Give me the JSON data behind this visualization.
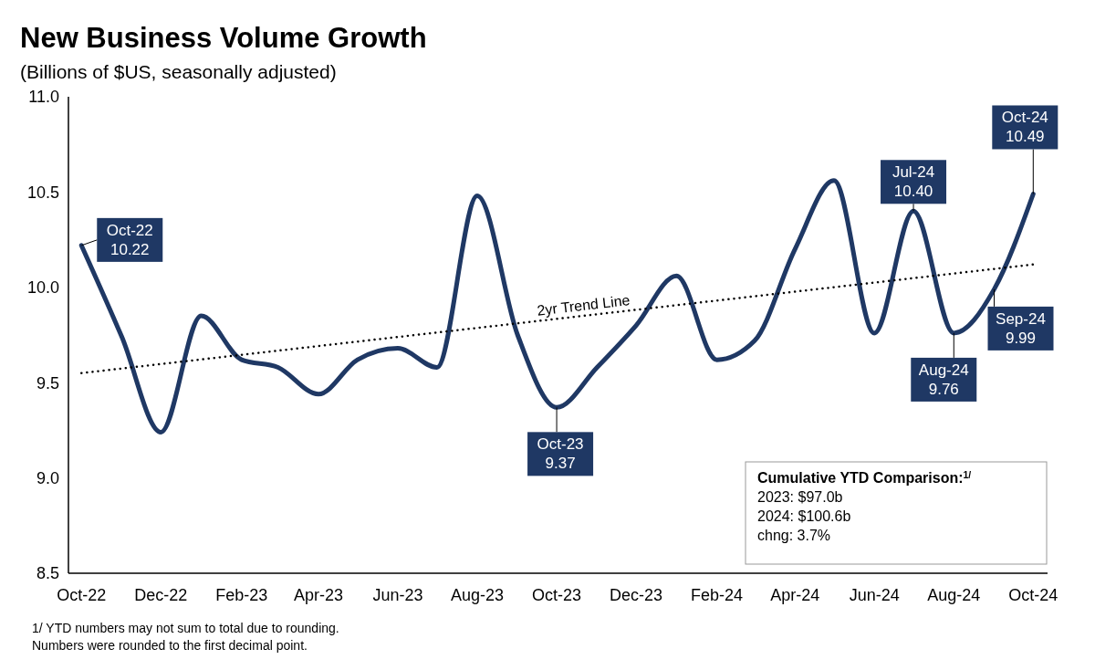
{
  "chart_data": {
    "type": "line",
    "title": "New Business Volume Growth",
    "subtitle": "(Billions of $US, seasonally adjusted)",
    "x": [
      "2022-10",
      "2022-11",
      "2022-12",
      "2023-01",
      "2023-02",
      "2023-03",
      "2023-04",
      "2023-05",
      "2023-06",
      "2023-07",
      "2023-08",
      "2023-09",
      "2023-10",
      "2023-11",
      "2023-12",
      "2024-01",
      "2024-02",
      "2024-03",
      "2024-04",
      "2024-05",
      "2024-06",
      "2024-07",
      "2024-08",
      "2024-09",
      "2024-10"
    ],
    "series": [
      {
        "color": "#1f3864",
        "values": [
          10.22,
          9.74,
          9.24,
          9.85,
          9.62,
          9.58,
          9.44,
          9.62,
          9.68,
          9.58,
          10.48,
          9.75,
          9.37,
          9.58,
          9.8,
          10.06,
          9.62,
          9.72,
          10.2,
          10.56,
          9.76,
          10.4,
          9.76,
          9.99,
          10.49
        ]
      },
      {
        "name": "2yr Trend Line",
        "type": "line",
        "color": "#000000",
        "line_style": "dotted",
        "x": [
          "2022-10",
          "2024-10"
        ],
        "values": [
          9.55,
          10.12
        ]
      }
    ],
    "xlim": [
      "2022-09-21",
      "2024-10-12"
    ],
    "xticks": [
      {
        "value": "2022-10",
        "label": "Oct-22"
      },
      {
        "value": "2022-12",
        "label": "Dec-22"
      },
      {
        "value": "2023-02",
        "label": "Feb-23"
      },
      {
        "value": "2023-04",
        "label": "Apr-23"
      },
      {
        "value": "2023-06",
        "label": "Jun-23"
      },
      {
        "value": "2023-08",
        "label": "Aug-23"
      },
      {
        "value": "2023-10",
        "label": "Oct-23"
      },
      {
        "value": "2023-12",
        "label": "Dec-23"
      },
      {
        "value": "2024-02",
        "label": "Feb-24"
      },
      {
        "value": "2024-04",
        "label": "Apr-24"
      },
      {
        "value": "2024-06",
        "label": "Jun-24"
      },
      {
        "value": "2024-08",
        "label": "Aug-24"
      },
      {
        "value": "2024-10",
        "label": "Oct-24"
      }
    ],
    "ylim": [
      8.5,
      11
    ],
    "yticks": [
      8.5,
      {
        "value": 9,
        "label": "9.0"
      },
      9.5,
      {
        "value": 10,
        "label": "10.0"
      },
      10.5,
      {
        "value": 11,
        "label": "11.0"
      }
    ],
    "grid": false,
    "marker": "none",
    "annotations": [
      {
        "text": "Oct-22\n10.22",
        "x": "2022-10",
        "y": 10.22
      },
      {
        "text": "Oct-23\n9.37",
        "x": "2023-10",
        "y": 9.37
      },
      {
        "text": "Jul-24\n10.40",
        "x": "2024-07",
        "y": 10.4
      },
      {
        "text": "Aug-24\n9.76",
        "x": "2024-08",
        "y": 9.76
      },
      {
        "text": "Sep-24\n9.99",
        "x": "2024-09",
        "y": 9.99
      },
      {
        "text": "Oct-24\n10.49",
        "x": "2024-10",
        "y": 10.49
      },
      "Cumulative YTD Comparison:$^{1/}$\n2023: $97.0b\n2024: $100.6b\nchng: 3.7%",
      "1/ YTD numbers may not sum to total due to rounding.",
      "Numbers were rounded to the first decimal point."
    ]
  }
}
